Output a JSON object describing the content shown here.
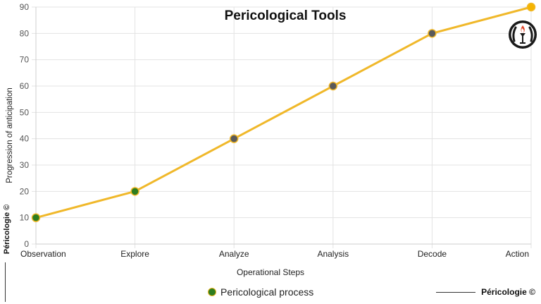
{
  "chart_data": {
    "type": "line",
    "title": "Pericological Tools",
    "xlabel": "Operational Steps",
    "ylabel": "Progression of anticipation",
    "categories": [
      "Observation",
      "Explore",
      "Analyze",
      "Analysis",
      "Decode",
      "Action"
    ],
    "series": [
      {
        "name": "Pericological process",
        "values": [
          10,
          20,
          40,
          60,
          80,
          90
        ],
        "line_color": "#f0b82a",
        "point_colors": [
          "#2e7d1f",
          "#2e7d1f",
          "#5a5a5a",
          "#5a5a5a",
          "#5a5a5a",
          "#f5b400"
        ]
      }
    ],
    "ylim": [
      0,
      90
    ],
    "yticks": [
      0,
      10,
      20,
      30,
      40,
      50,
      60,
      70,
      80,
      90
    ],
    "grid": true,
    "legend_position": "bottom"
  },
  "branding": {
    "left_vertical": "Péricologie ©",
    "bottom_right": "Péricologie ©"
  },
  "icons": {
    "logo": "torch-laurel-emblem-icon"
  }
}
